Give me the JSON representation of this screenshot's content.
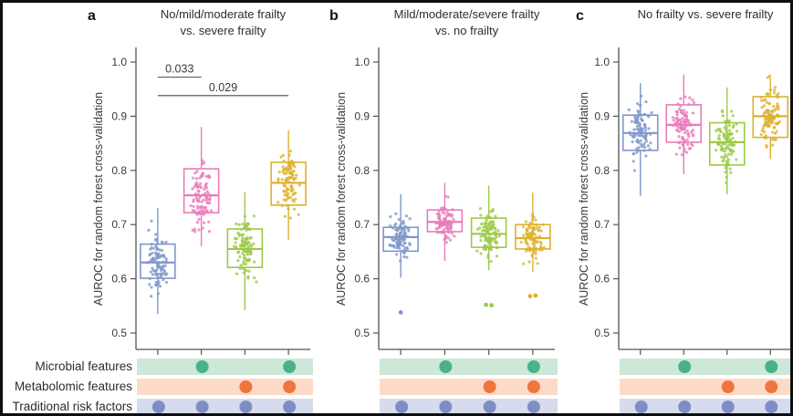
{
  "figure": {
    "background": "#ffffff",
    "border_color": "#0f0f0f",
    "text_color": "#3a3a3a",
    "axis_color": "#555555",
    "significance_line_color": "#4a4a4a"
  },
  "chart_data": [
    {
      "panel_letter": "a",
      "type": "boxplot-jitter",
      "title": "No/mild/moderate frailty\nvs. severe frailty",
      "ylabel": "AUROC for random forest cross-validation",
      "ylim": [
        0.5,
        1.0
      ],
      "yticks": [
        1.0,
        0.9,
        0.8,
        0.7,
        0.6,
        0.5
      ],
      "n_points_per_group": 100,
      "groups": [
        {
          "color": "#8097cb",
          "whisker_low": 0.535,
          "q1": 0.601,
          "median": 0.63,
          "q3": 0.664,
          "whisker_high": 0.731,
          "outliers": []
        },
        {
          "color": "#e87cba",
          "whisker_low": 0.66,
          "q1": 0.722,
          "median": 0.754,
          "q3": 0.803,
          "whisker_high": 0.88,
          "outliers": []
        },
        {
          "color": "#9bc947",
          "whisker_low": 0.542,
          "q1": 0.621,
          "median": 0.655,
          "q3": 0.692,
          "whisker_high": 0.76,
          "outliers": []
        },
        {
          "color": "#ddb12f",
          "whisker_low": 0.672,
          "q1": 0.736,
          "median": 0.777,
          "q3": 0.815,
          "whisker_high": 0.874,
          "outliers": []
        }
      ],
      "significance": [
        {
          "label": "0.033",
          "from_group": 1,
          "to_group": 2,
          "value": 0.972
        },
        {
          "label": "0.029",
          "from_group": 1,
          "to_group": 4,
          "value": 0.938
        }
      ]
    },
    {
      "panel_letter": "b",
      "type": "boxplot-jitter",
      "title": "Mild/moderate/severe frailty\nvs. no frailty",
      "ylabel": "AUROC for random forest cross-validation",
      "ylim": [
        0.5,
        1.0
      ],
      "yticks": [
        1.0,
        0.9,
        0.8,
        0.7,
        0.6,
        0.5
      ],
      "n_points_per_group": 100,
      "groups": [
        {
          "color": "#8097cb",
          "whisker_low": 0.602,
          "q1": 0.651,
          "median": 0.677,
          "q3": 0.695,
          "whisker_high": 0.756,
          "outliers": [
            0.538
          ]
        },
        {
          "color": "#e87cba",
          "whisker_low": 0.633,
          "q1": 0.687,
          "median": 0.705,
          "q3": 0.727,
          "whisker_high": 0.777,
          "outliers": []
        },
        {
          "color": "#9bc947",
          "whisker_low": 0.616,
          "q1": 0.658,
          "median": 0.683,
          "q3": 0.712,
          "whisker_high": 0.772,
          "outliers": [
            0.552,
            0.551
          ]
        },
        {
          "color": "#ddb12f",
          "whisker_low": 0.613,
          "q1": 0.655,
          "median": 0.675,
          "q3": 0.7,
          "whisker_high": 0.759,
          "outliers": [
            0.568,
            0.569
          ]
        }
      ],
      "significance": []
    },
    {
      "panel_letter": "c",
      "type": "boxplot-jitter",
      "title": "No frailty vs. severe frailty",
      "ylabel": "AUROC for random forest cross-validation",
      "ylim": [
        0.5,
        1.0
      ],
      "yticks": [
        1.0,
        0.9,
        0.8,
        0.7,
        0.6,
        0.5
      ],
      "n_points_per_group": 100,
      "groups": [
        {
          "color": "#8097cb",
          "whisker_low": 0.753,
          "q1": 0.837,
          "median": 0.869,
          "q3": 0.902,
          "whisker_high": 0.961,
          "outliers": []
        },
        {
          "color": "#e87cba",
          "whisker_low": 0.793,
          "q1": 0.852,
          "median": 0.884,
          "q3": 0.921,
          "whisker_high": 0.977,
          "outliers": []
        },
        {
          "color": "#9bc947",
          "whisker_low": 0.756,
          "q1": 0.81,
          "median": 0.852,
          "q3": 0.888,
          "whisker_high": 0.953,
          "outliers": []
        },
        {
          "color": "#ddb12f",
          "whisker_low": 0.821,
          "q1": 0.861,
          "median": 0.9,
          "q3": 0.936,
          "whisker_high": 0.972,
          "outliers": []
        }
      ],
      "significance": []
    }
  ],
  "feature_matrix": {
    "rows": [
      {
        "label": "Microbial features",
        "band_color": "#cce8d8",
        "dot_color": "#4bb18b",
        "dots": [
          0,
          1,
          0,
          1
        ]
      },
      {
        "label": "Metabolomic features",
        "band_color": "#fbdbc8",
        "dot_color": "#f0743f",
        "dots": [
          0,
          0,
          1,
          1
        ]
      },
      {
        "label": "Traditional risk factors",
        "band_color": "#d6dbee",
        "dot_color": "#7e8ec5",
        "dots": [
          1,
          1,
          1,
          1
        ]
      }
    ]
  }
}
